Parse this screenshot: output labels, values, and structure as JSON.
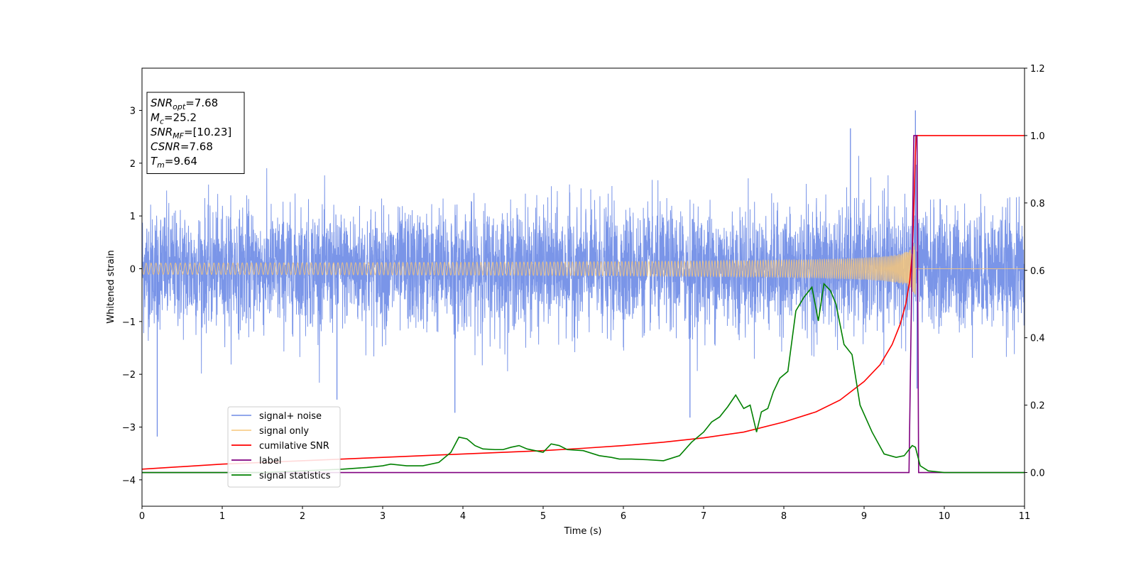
{
  "chart_data": {
    "type": "line",
    "xlabel": "Time (s)",
    "ylabel_left": "Whitened strain",
    "ylabel_right": "",
    "xlim": [
      0,
      11
    ],
    "ylim_left": [
      -4.5,
      3.8
    ],
    "ylim_right": [
      -0.1,
      1.2
    ],
    "xticks": [
      0,
      1,
      2,
      3,
      4,
      5,
      6,
      7,
      8,
      9,
      10,
      11
    ],
    "yticks_left": [
      -4,
      -3,
      -2,
      -1,
      0,
      1,
      2,
      3
    ],
    "yticks_right": [
      0.0,
      0.2,
      0.4,
      0.6,
      0.8,
      1.0,
      1.2
    ],
    "grid": false,
    "legend_position": "lower-left",
    "annotation": {
      "lines": [
        {
          "sym": "SNR",
          "sub": "opt",
          "value": "=7.68"
        },
        {
          "sym": "M",
          "sub": "c",
          "value": "=25.2"
        },
        {
          "sym": "SNR",
          "sub": "MF",
          "value": "=[10.23]"
        },
        {
          "sym": "CSNR",
          "sub": "",
          "value": "=7.68"
        },
        {
          "sym": "T",
          "sub": "m",
          "value": "=9.64"
        }
      ]
    },
    "series": [
      {
        "name": "signal+ noise",
        "axis": "left",
        "color": "#6f8ce6",
        "style": "noise",
        "noise_sigma": 0.55,
        "t_start": 0,
        "t_end": 11,
        "peak_events": [
          [
            0.19,
            -3.18
          ],
          [
            2.43,
            -2.48
          ],
          [
            3.9,
            -2.73
          ],
          [
            6.83,
            -2.82
          ],
          [
            8.83,
            2.66
          ],
          [
            9.64,
            3.0
          ],
          [
            9.66,
            -2.27
          ]
        ]
      },
      {
        "name": "signal only",
        "axis": "left",
        "color": "#f7c77a",
        "style": "chirp",
        "t_merge": 9.64,
        "t_end": 9.66,
        "amplitude_at_merge": 0.5
      },
      {
        "name": "cumilative SNR",
        "axis": "right",
        "color": "#ff0000",
        "x": [
          0,
          1,
          2,
          3,
          4,
          5,
          5.5,
          6,
          6.5,
          7,
          7.5,
          8,
          8.4,
          8.7,
          9.0,
          9.2,
          9.35,
          9.45,
          9.52,
          9.57,
          9.6,
          9.62,
          9.64,
          9.65,
          11
        ],
        "y": [
          0.01,
          0.025,
          0.035,
          0.045,
          0.055,
          0.065,
          0.072,
          0.08,
          0.09,
          0.103,
          0.12,
          0.15,
          0.18,
          0.215,
          0.27,
          0.32,
          0.38,
          0.44,
          0.5,
          0.57,
          0.65,
          0.78,
          0.95,
          1.0,
          1.0
        ]
      },
      {
        "name": "label",
        "axis": "right",
        "color": "#800080",
        "x": [
          0,
          9.56,
          9.62,
          9.66,
          9.68,
          11
        ],
        "y": [
          0,
          0,
          1.0,
          1.0,
          0,
          0
        ]
      },
      {
        "name": "signal statistics",
        "axis": "right",
        "color": "#008000",
        "x": [
          0,
          0.5,
          1,
          1.5,
          2,
          2.5,
          2.8,
          3.0,
          3.1,
          3.3,
          3.5,
          3.7,
          3.85,
          3.95,
          4.05,
          4.15,
          4.25,
          4.4,
          4.5,
          4.6,
          4.7,
          4.8,
          4.9,
          5.0,
          5.1,
          5.2,
          5.3,
          5.5,
          5.7,
          5.85,
          5.95,
          6.1,
          6.3,
          6.5,
          6.7,
          6.85,
          7.0,
          7.1,
          7.2,
          7.3,
          7.4,
          7.5,
          7.58,
          7.66,
          7.72,
          7.8,
          7.87,
          7.95,
          8.05,
          8.15,
          8.25,
          8.35,
          8.43,
          8.5,
          8.58,
          8.65,
          8.75,
          8.85,
          8.95,
          9.1,
          9.25,
          9.4,
          9.5,
          9.6,
          9.64,
          9.7,
          9.8,
          10.0,
          11.0
        ],
        "y": [
          0,
          0.0,
          0.0,
          0.0,
          0.005,
          0.01,
          0.015,
          0.02,
          0.025,
          0.02,
          0.02,
          0.03,
          0.06,
          0.105,
          0.1,
          0.08,
          0.07,
          0.068,
          0.068,
          0.075,
          0.08,
          0.07,
          0.065,
          0.06,
          0.085,
          0.08,
          0.068,
          0.065,
          0.05,
          0.045,
          0.04,
          0.04,
          0.038,
          0.035,
          0.05,
          0.09,
          0.12,
          0.15,
          0.165,
          0.195,
          0.23,
          0.19,
          0.2,
          0.12,
          0.18,
          0.19,
          0.24,
          0.28,
          0.3,
          0.48,
          0.52,
          0.55,
          0.45,
          0.56,
          0.54,
          0.5,
          0.38,
          0.35,
          0.2,
          0.12,
          0.055,
          0.045,
          0.05,
          0.08,
          0.075,
          0.02,
          0.005,
          0.0,
          0.0
        ]
      }
    ]
  }
}
